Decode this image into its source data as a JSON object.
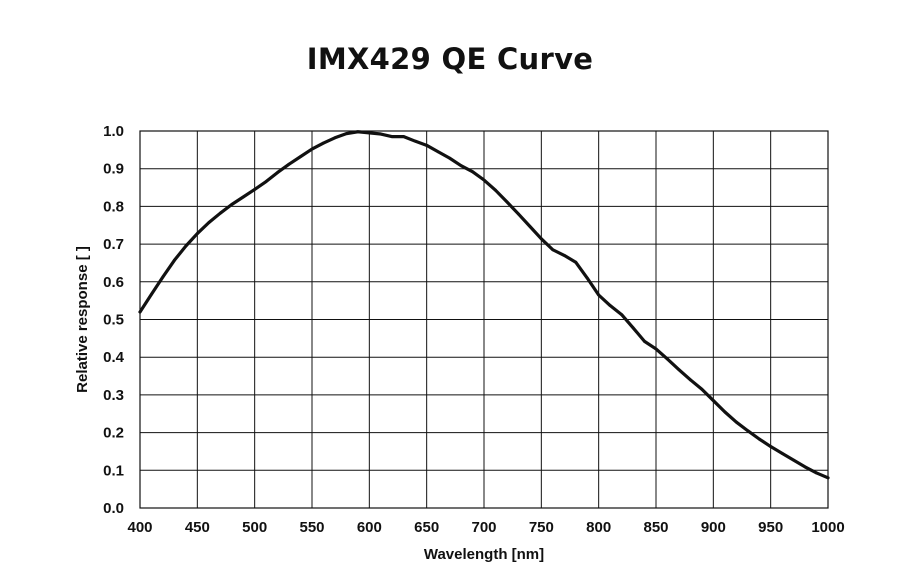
{
  "chart_data": {
    "type": "line",
    "title": "IMX429 QE Curve",
    "xlabel": "Wavelength [nm]",
    "ylabel": "Relative response [ ]",
    "xlim": [
      400,
      1000
    ],
    "ylim": [
      0.0,
      1.0
    ],
    "x_ticks": [
      400,
      450,
      500,
      550,
      600,
      650,
      700,
      750,
      800,
      850,
      900,
      950,
      1000
    ],
    "y_ticks": [
      "0.0",
      "0.1",
      "0.2",
      "0.3",
      "0.4",
      "0.5",
      "0.6",
      "0.7",
      "0.8",
      "0.9",
      "1.0"
    ],
    "grid": true,
    "legend": false,
    "series": [
      {
        "color": "#111111",
        "x": [
          400,
          410,
          420,
          430,
          440,
          450,
          460,
          470,
          480,
          490,
          500,
          510,
          520,
          530,
          540,
          550,
          560,
          570,
          580,
          590,
          600,
          610,
          620,
          630,
          640,
          650,
          660,
          670,
          680,
          690,
          700,
          710,
          720,
          730,
          740,
          750,
          760,
          770,
          780,
          790,
          800,
          810,
          820,
          830,
          840,
          850,
          860,
          870,
          880,
          890,
          900,
          910,
          920,
          930,
          940,
          950,
          960,
          970,
          980,
          990,
          1000
        ],
        "y": [
          0.52,
          0.567,
          0.613,
          0.657,
          0.695,
          0.728,
          0.757,
          0.782,
          0.805,
          0.825,
          0.845,
          0.866,
          0.89,
          0.912,
          0.932,
          0.952,
          0.968,
          0.982,
          0.993,
          0.998,
          0.995,
          0.992,
          0.985,
          0.985,
          0.973,
          0.962,
          0.945,
          0.928,
          0.908,
          0.892,
          0.87,
          0.843,
          0.812,
          0.78,
          0.747,
          0.714,
          0.685,
          0.67,
          0.652,
          0.61,
          0.565,
          0.537,
          0.513,
          0.478,
          0.442,
          0.422,
          0.395,
          0.367,
          0.34,
          0.315,
          0.285,
          0.255,
          0.228,
          0.205,
          0.183,
          0.163,
          0.145,
          0.127,
          0.109,
          0.093,
          0.08
        ]
      }
    ]
  }
}
